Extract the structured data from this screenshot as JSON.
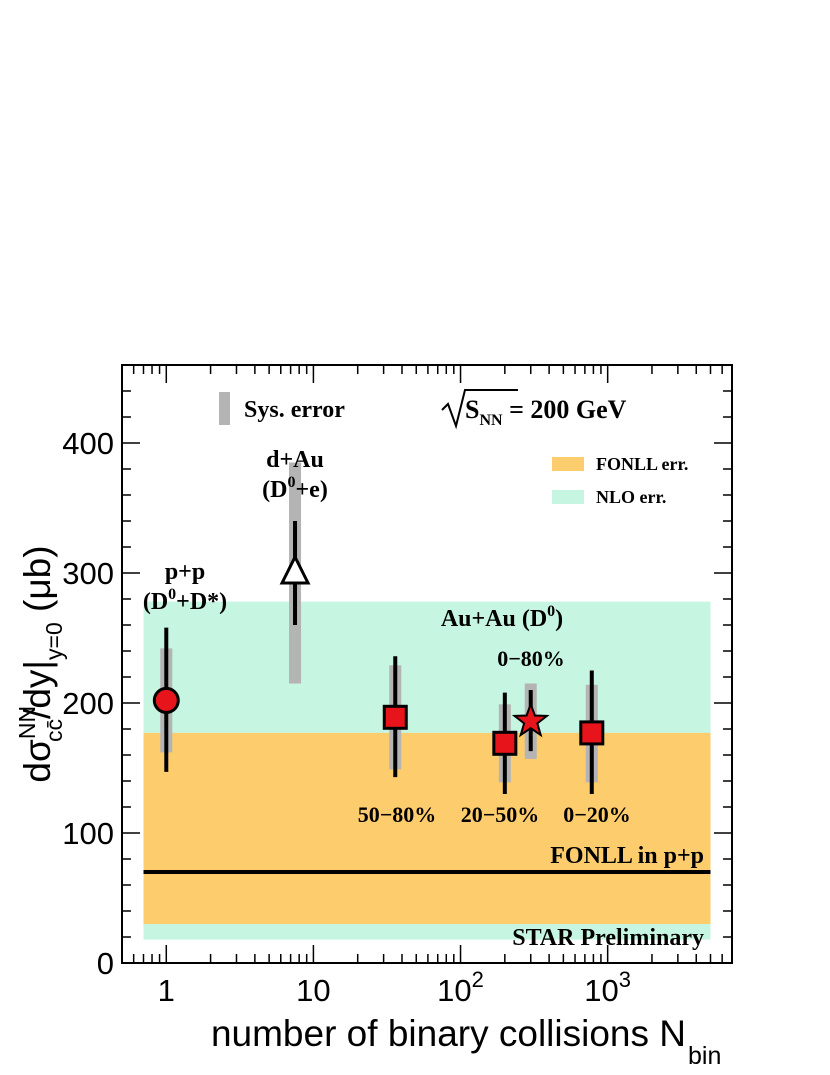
{
  "chart_data": {
    "type": "scatter",
    "x_scale": "log",
    "xlim": [
      0.5,
      7000
    ],
    "ylim": [
      0,
      460
    ],
    "xlabel": {
      "main": "number of binary collisions N",
      "sub": "bin"
    },
    "ylabel": {
      "main": "dσ",
      "sup": "NN",
      "sub": "cc̄",
      "rest": "/dy|",
      "sub2": "y=0",
      "unit": " (μb)"
    },
    "x_ticks": [
      {
        "value": 1,
        "base": "1",
        "exp": ""
      },
      {
        "value": 10,
        "base": "10",
        "exp": ""
      },
      {
        "value": 100,
        "base": "10",
        "exp": "2"
      },
      {
        "value": 1000,
        "base": "10",
        "exp": "3"
      }
    ],
    "y_ticks": [
      {
        "value": 0,
        "label": "0"
      },
      {
        "value": 100,
        "label": "100"
      },
      {
        "value": 200,
        "label": "200"
      },
      {
        "value": 300,
        "label": "300"
      },
      {
        "value": 400,
        "label": "400"
      }
    ],
    "bands": [
      {
        "name": "NLO err.",
        "x_range": [
          0.7,
          5000
        ],
        "y_range": [
          18,
          278
        ],
        "color": "#c6f5e2"
      },
      {
        "name": "FONLL err.",
        "x_range": [
          0.7,
          5000
        ],
        "y_range": [
          30,
          177
        ],
        "color": "#fdcc6c"
      }
    ],
    "fonll_line": {
      "value": 70,
      "x_range": [
        0.7,
        5000
      ],
      "label": "FONLL in p+p"
    },
    "points": [
      {
        "x": 1,
        "y": 202,
        "stat": [
          147,
          258
        ],
        "sys": [
          162,
          242
        ],
        "marker": "circle",
        "fill": "#e8141b",
        "label_lines": [
          {
            "text": "p+p"
          },
          {
            "text": "(D",
            "sup": "0",
            "after": "+D*)"
          }
        ]
      },
      {
        "x": 7.5,
        "y": 300,
        "stat": [
          260,
          340
        ],
        "sys": [
          215,
          385
        ],
        "marker": "triangle",
        "fill": "#ffffff",
        "label_lines": [
          {
            "text": "d+Au"
          },
          {
            "text": "(D",
            "sup": "0",
            "after": "+e)"
          }
        ]
      },
      {
        "x": 36,
        "y": 189,
        "stat": [
          143,
          236
        ],
        "sys": [
          149,
          229
        ],
        "marker": "square",
        "fill": "#e8141b",
        "label": "50−80%"
      },
      {
        "x": 200,
        "y": 169,
        "stat": [
          130,
          208
        ],
        "sys": [
          139,
          199
        ],
        "marker": "square",
        "fill": "#e8141b",
        "label": "20−50%"
      },
      {
        "x": 300,
        "y": 186,
        "stat": [
          163,
          210
        ],
        "sys": [
          157,
          215
        ],
        "marker": "star",
        "fill": "#e8141b",
        "label": "0−80%"
      },
      {
        "x": 780,
        "y": 177,
        "stat": [
          130,
          225
        ],
        "sys": [
          139,
          214
        ],
        "marker": "square",
        "fill": "#e8141b",
        "label": "0−20%"
      }
    ],
    "annotations": {
      "sys_error": "Sys. error",
      "energy": {
        "prefix": "S",
        "sub": "NN",
        "rest": " = 200 GeV"
      },
      "auau": {
        "text": "Au+Au (D",
        "sup": "0",
        "after": ")"
      },
      "preliminary": "STAR Preliminary"
    },
    "legend": [
      {
        "label": "FONLL err.",
        "color": "#fdcc6c"
      },
      {
        "label": "NLO err.",
        "color": "#c6f5e2"
      }
    ]
  }
}
